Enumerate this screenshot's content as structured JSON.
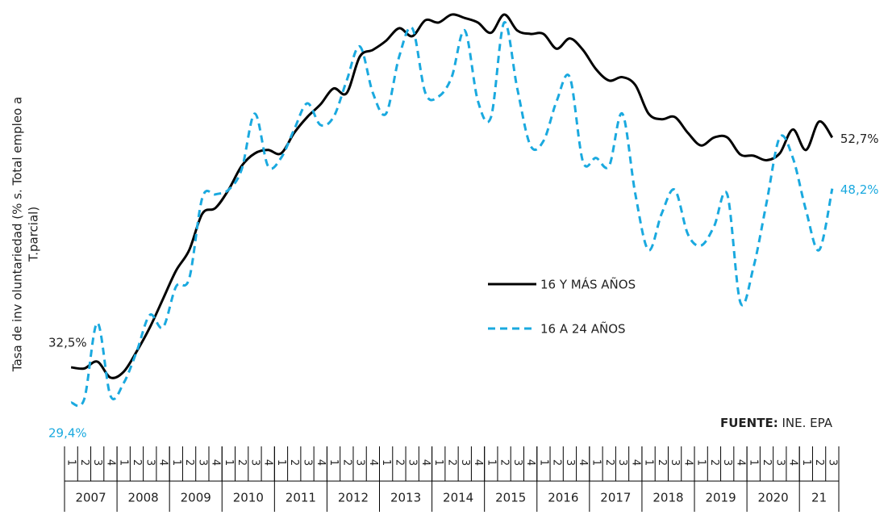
{
  "chart_data": {
    "type": "line",
    "y_label_lines": [
      "Tasa de inv oluntariedad (% s. Total empleo a",
      "T.parcial)"
    ],
    "source_label": "FUENTE:",
    "source": "INE. EPA",
    "categories": [
      "1",
      "2",
      "3",
      "4",
      "1",
      "2",
      "3",
      "4",
      "1",
      "2",
      "3",
      "4",
      "1",
      "2",
      "3",
      "4",
      "1",
      "2",
      "3",
      "4",
      "1",
      "2",
      "3",
      "4",
      "1",
      "2",
      "3",
      "4",
      "1",
      "2",
      "3",
      "4",
      "1",
      "2",
      "3",
      "4",
      "1",
      "2",
      "3",
      "4",
      "1",
      "2",
      "3",
      "4",
      "1",
      "2",
      "3",
      "4",
      "1",
      "2",
      "3",
      "4",
      "1",
      "2",
      "3",
      "4",
      "1",
      "2",
      "3"
    ],
    "years": [
      "2007",
      "2008",
      "2009",
      "2010",
      "2011",
      "2012",
      "2013",
      "2014",
      "2015",
      "2016",
      "2017",
      "2018",
      "2019",
      "2020",
      "21"
    ],
    "ylim": [
      28,
      64
    ],
    "grid": false,
    "series": [
      {
        "name": "16 Y MÁS AÑOS",
        "color": "#000000",
        "dash": false,
        "values": [
          32.5,
          32.4,
          33.0,
          31.6,
          32.1,
          33.9,
          36.0,
          38.5,
          41.0,
          42.8,
          46.0,
          46.5,
          48.1,
          50.2,
          51.3,
          51.6,
          51.3,
          53.1,
          54.5,
          55.6,
          57.0,
          56.6,
          59.8,
          60.4,
          61.2,
          62.3,
          61.6,
          63.0,
          62.8,
          63.5,
          63.2,
          62.8,
          61.9,
          63.5,
          62.1,
          61.8,
          61.8,
          60.5,
          61.4,
          60.4,
          58.7,
          57.7,
          58.0,
          57.3,
          54.8,
          54.3,
          54.5,
          53.1,
          52.0,
          52.7,
          52.7,
          51.2,
          51.1,
          50.7,
          51.3,
          53.4,
          51.6,
          54.1,
          52.7
        ],
        "value_labels": [
          "32,5%",
          null,
          null,
          null,
          null,
          null,
          null,
          null,
          null,
          null,
          null,
          null,
          null,
          null,
          null,
          null,
          null,
          null,
          null,
          null,
          null,
          null,
          null,
          null,
          null,
          null,
          null,
          null,
          null,
          null,
          null,
          null,
          null,
          null,
          null,
          null,
          null,
          null,
          null,
          null,
          null,
          null,
          null,
          null,
          null,
          null,
          null,
          null,
          null,
          null,
          null,
          null,
          null,
          null,
          null,
          null,
          null,
          null,
          "52,7%"
        ]
      },
      {
        "name": "16 A 24 AÑOS",
        "color": "#1aa9df",
        "dash": true,
        "values": [
          29.4,
          29.7,
          36.4,
          30.0,
          31.1,
          33.9,
          37.1,
          36.0,
          39.6,
          40.3,
          47.4,
          47.7,
          48.1,
          49.9,
          54.8,
          50.2,
          50.9,
          53.4,
          55.7,
          53.8,
          54.5,
          57.7,
          60.7,
          56.6,
          54.8,
          59.8,
          62.3,
          56.6,
          56.3,
          58.0,
          62.1,
          55.9,
          54.5,
          62.8,
          57.0,
          52.0,
          52.4,
          55.9,
          58.0,
          50.6,
          50.9,
          50.2,
          54.8,
          47.7,
          42.8,
          46.0,
          48.1,
          44.2,
          43.2,
          44.9,
          47.7,
          38.2,
          41.3,
          47.0,
          52.7,
          50.9,
          46.3,
          42.8,
          48.2
        ],
        "value_labels": [
          "29,4%",
          null,
          null,
          null,
          null,
          null,
          null,
          null,
          null,
          null,
          null,
          null,
          null,
          null,
          null,
          null,
          null,
          null,
          null,
          null,
          null,
          null,
          null,
          null,
          null,
          null,
          null,
          null,
          null,
          null,
          null,
          null,
          null,
          null,
          null,
          null,
          null,
          null,
          null,
          null,
          null,
          null,
          null,
          null,
          null,
          null,
          null,
          null,
          null,
          null,
          null,
          null,
          null,
          null,
          null,
          null,
          null,
          null,
          "48,2%"
        ]
      }
    ]
  }
}
